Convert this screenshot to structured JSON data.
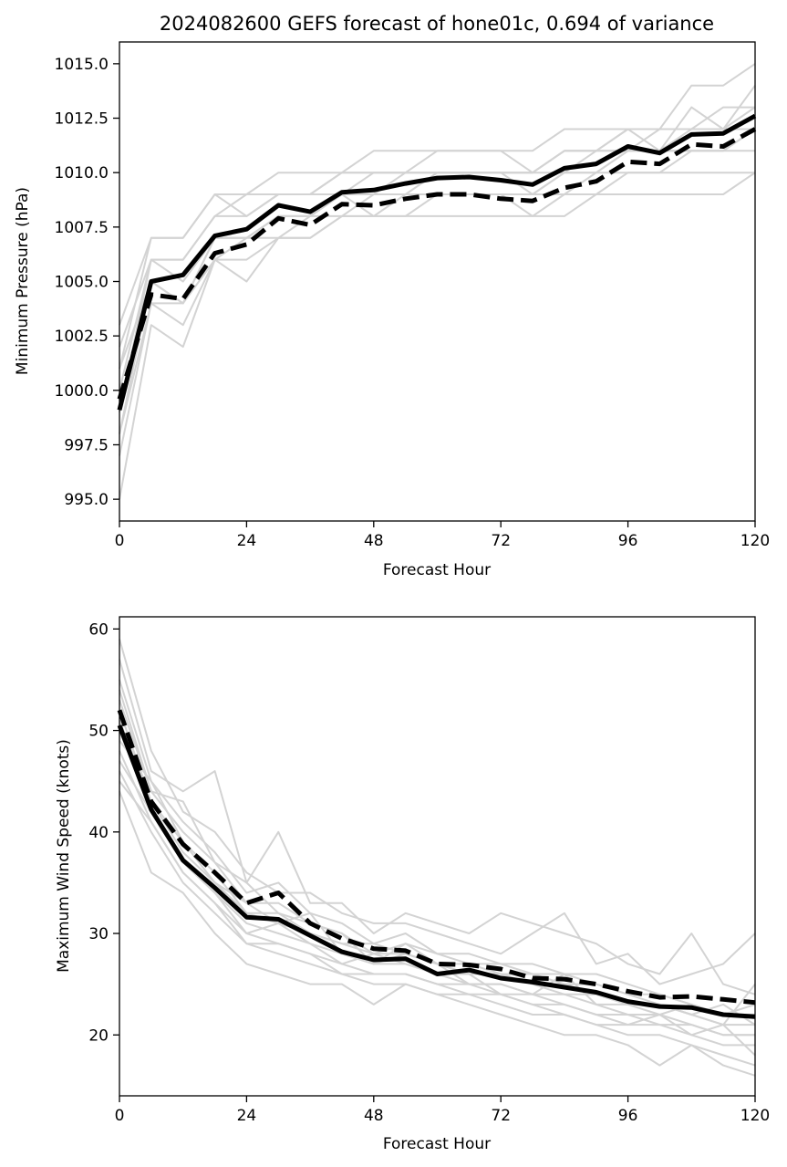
{
  "chart_data": [
    {
      "type": "line",
      "title": "2024082600 GEFS forecast of hone01c, 0.694 of variance",
      "xlabel": "Forecast Hour",
      "ylabel": "Minimum Pressure (hPa)",
      "xlim": [
        0,
        120
      ],
      "ylim": [
        994,
        1016
      ],
      "xticks": [
        0,
        24,
        48,
        72,
        96,
        120
      ],
      "xtick_labels": [
        "0",
        "24",
        "48",
        "72",
        "96",
        "120"
      ],
      "yticks": [
        995,
        997.5,
        1000,
        1002.5,
        1005,
        1007.5,
        1010,
        1012.5,
        1015
      ],
      "ytick_labels": [
        "995.0",
        "997.5",
        "1000.0",
        "1002.5",
        "1005.0",
        "1007.5",
        "1010.0",
        "1012.5",
        "1015.0"
      ],
      "grid": false,
      "x": [
        0,
        6,
        12,
        18,
        24,
        30,
        36,
        42,
        48,
        54,
        60,
        66,
        72,
        78,
        84,
        90,
        96,
        102,
        108,
        114,
        120
      ],
      "series": [
        {
          "style": "mean",
          "color": "#000000",
          "values": [
            999.1,
            1005.0,
            1005.3,
            1007.1,
            1007.4,
            1008.5,
            1008.2,
            1009.1,
            1009.2,
            1009.5,
            1009.75,
            1009.8,
            1009.65,
            1009.45,
            1010.2,
            1010.4,
            1011.2,
            1010.9,
            1011.75,
            1011.8,
            1012.6
          ]
        },
        {
          "style": "median",
          "color": "#000000",
          "values": [
            999.6,
            1004.4,
            1004.2,
            1006.3,
            1006.7,
            1007.9,
            1007.6,
            1008.55,
            1008.5,
            1008.8,
            1009.0,
            1009.0,
            1008.8,
            1008.7,
            1009.3,
            1009.6,
            1010.5,
            1010.4,
            1011.3,
            1011.2,
            1012.0
          ]
        },
        {
          "style": "member",
          "color": "#d3d3d3",
          "values": [
            995,
            1003,
            1002,
            1006,
            1005,
            1007,
            1007,
            1008,
            1008,
            1008,
            1008,
            1008,
            1008,
            1008,
            1008,
            1009,
            1009,
            1009,
            1009,
            1009,
            1010
          ]
        },
        {
          "style": "member",
          "color": "#d3d3d3",
          "values": [
            997,
            1004,
            1003,
            1006,
            1006,
            1007,
            1007,
            1008,
            1008,
            1008,
            1009,
            1009,
            1009,
            1008,
            1009,
            1009,
            1010,
            1010,
            1010,
            1010,
            1010
          ]
        },
        {
          "style": "member",
          "color": "#d3d3d3",
          "values": [
            998,
            1005,
            1004,
            1007,
            1007,
            1008,
            1008,
            1009,
            1008,
            1009,
            1009,
            1009,
            1009,
            1009,
            1009,
            1010,
            1010,
            1010,
            1011,
            1011,
            1011
          ]
        },
        {
          "style": "member",
          "color": "#d3d3d3",
          "values": [
            999,
            1006,
            1005,
            1007,
            1007,
            1008,
            1008,
            1009,
            1009,
            1009,
            1010,
            1010,
            1010,
            1009,
            1010,
            1010,
            1011,
            1011,
            1011,
            1011,
            1012
          ]
        },
        {
          "style": "member",
          "color": "#d3d3d3",
          "values": [
            1000,
            1006,
            1006,
            1008,
            1008,
            1009,
            1009,
            1009,
            1009,
            1010,
            1010,
            1010,
            1010,
            1010,
            1010,
            1011,
            1011,
            1011,
            1012,
            1012,
            1012
          ]
        },
        {
          "style": "member",
          "color": "#d3d3d3",
          "values": [
            1001,
            1007,
            1007,
            1009,
            1008,
            1009,
            1009,
            1010,
            1010,
            1010,
            1010,
            1010,
            1010,
            1010,
            1011,
            1011,
            1012,
            1012,
            1012,
            1012,
            1013
          ]
        },
        {
          "style": "member",
          "color": "#d3d3d3",
          "values": [
            1002,
            1006,
            1006,
            1008,
            1009,
            1009,
            1009,
            1010,
            1010,
            1010,
            1011,
            1011,
            1011,
            1010,
            1011,
            1011,
            1012,
            1011,
            1013,
            1012,
            1014
          ]
        },
        {
          "style": "member",
          "color": "#d3d3d3",
          "values": [
            1003,
            1007,
            1007,
            1009,
            1009,
            1010,
            1010,
            1010,
            1011,
            1011,
            1011,
            1011,
            1011,
            1011,
            1012,
            1012,
            1012,
            1012,
            1014,
            1014,
            1015
          ]
        },
        {
          "style": "member",
          "color": "#d3d3d3",
          "values": [
            1001,
            1005,
            1004,
            1007,
            1007,
            1008,
            1008,
            1009,
            1010,
            1010,
            1010,
            1010,
            1010,
            1010,
            1011,
            1011,
            1011,
            1012,
            1012,
            1013,
            1013
          ]
        },
        {
          "style": "member",
          "color": "#d3d3d3",
          "values": [
            998,
            1004,
            1004,
            1006,
            1007,
            1007,
            1008,
            1008,
            1009,
            1009,
            1009,
            1009,
            1009,
            1009,
            1010,
            1010,
            1011,
            1011,
            1011,
            1011,
            1012
          ]
        }
      ]
    },
    {
      "type": "line",
      "title": "",
      "xlabel": "Forecast Hour",
      "ylabel": "Maximum Wind Speed (knots)",
      "xlim": [
        0,
        120
      ],
      "ylim": [
        14,
        61.2
      ],
      "xticks": [
        0,
        24,
        48,
        72,
        96,
        120
      ],
      "xtick_labels": [
        "0",
        "24",
        "48",
        "72",
        "96",
        "120"
      ],
      "yticks": [
        20,
        30,
        40,
        50,
        60
      ],
      "ytick_labels": [
        "20",
        "30",
        "40",
        "50",
        "60"
      ],
      "grid": false,
      "x": [
        0,
        6,
        12,
        18,
        24,
        30,
        36,
        42,
        48,
        54,
        60,
        66,
        72,
        78,
        84,
        90,
        96,
        102,
        108,
        114,
        120
      ],
      "series": [
        {
          "style": "mean",
          "color": "#000000",
          "values": [
            50.5,
            42.2,
            37.2,
            34.5,
            31.6,
            31.4,
            29.8,
            28.2,
            27.4,
            27.5,
            26.0,
            26.4,
            25.6,
            25.2,
            24.7,
            24.2,
            23.3,
            22.8,
            22.7,
            22.0,
            21.8
          ]
        },
        {
          "style": "median",
          "color": "#000000",
          "values": [
            52.0,
            43.0,
            38.8,
            36.0,
            33.0,
            34.0,
            31.0,
            29.5,
            28.5,
            28.3,
            27.0,
            26.9,
            26.5,
            25.6,
            25.5,
            25.0,
            24.3,
            23.7,
            23.8,
            23.5,
            23.2
          ]
        },
        {
          "style": "member",
          "color": "#d3d3d3",
          "values": [
            59,
            48,
            42,
            40,
            36,
            34,
            34,
            32,
            31,
            31,
            30,
            29,
            28,
            30,
            32,
            27,
            28,
            25,
            26,
            27,
            30
          ]
        },
        {
          "style": "member",
          "color": "#d3d3d3",
          "values": [
            57,
            46,
            44,
            46,
            35,
            40,
            33,
            33,
            30,
            32,
            31,
            30,
            32,
            31,
            30,
            29,
            27,
            26,
            30,
            25,
            24
          ]
        },
        {
          "style": "member",
          "color": "#d3d3d3",
          "values": [
            55,
            45,
            41,
            38,
            34,
            35,
            32,
            31,
            29,
            30,
            28,
            28,
            27,
            27,
            26,
            26,
            25,
            24,
            23,
            22,
            23
          ]
        },
        {
          "style": "member",
          "color": "#d3d3d3",
          "values": [
            53,
            44,
            40,
            37,
            33,
            33,
            31,
            30,
            28,
            29,
            28,
            27,
            27,
            26,
            26,
            25,
            24,
            24,
            23,
            22,
            22
          ]
        },
        {
          "style": "member",
          "color": "#d3d3d3",
          "values": [
            51,
            43,
            38,
            35,
            32,
            31,
            30,
            29,
            28,
            28,
            27,
            26,
            26,
            25,
            25,
            24,
            23,
            23,
            22,
            21,
            21
          ]
        },
        {
          "style": "member",
          "color": "#d3d3d3",
          "values": [
            50,
            42,
            37,
            34,
            31,
            30,
            29,
            28,
            27,
            27,
            26,
            25,
            25,
            24,
            24,
            23,
            22,
            22,
            21,
            20,
            20
          ]
        },
        {
          "style": "member",
          "color": "#d3d3d3",
          "values": [
            48,
            41,
            36,
            33,
            30,
            29,
            28,
            27,
            26,
            26,
            25,
            24,
            24,
            23,
            23,
            22,
            21,
            21,
            20,
            19,
            19
          ]
        },
        {
          "style": "member",
          "color": "#d3d3d3",
          "values": [
            46,
            40,
            35,
            32,
            29,
            28,
            27,
            26,
            25,
            25,
            24,
            24,
            23,
            22,
            22,
            21,
            20,
            20,
            19,
            18,
            17
          ]
        },
        {
          "style": "member",
          "color": "#d3d3d3",
          "values": [
            44,
            36,
            34,
            30,
            27,
            26,
            25,
            25,
            23,
            25,
            24,
            23,
            22,
            21,
            20,
            20,
            19,
            17,
            19,
            17,
            16
          ]
        },
        {
          "style": "member",
          "color": "#d3d3d3",
          "values": [
            49,
            45,
            39,
            36,
            32,
            32,
            30,
            29,
            29,
            28,
            27,
            26,
            26,
            25,
            24,
            24,
            23,
            22,
            23,
            22,
            22
          ]
        },
        {
          "style": "member",
          "color": "#d3d3d3",
          "values": [
            54,
            44,
            43,
            37,
            35,
            32,
            31,
            30,
            27,
            29,
            27,
            27,
            26,
            26,
            25,
            25,
            24,
            23,
            22,
            21,
            25
          ]
        },
        {
          "style": "member",
          "color": "#d3d3d3",
          "values": [
            47,
            42,
            37,
            34,
            30,
            31,
            29,
            27,
            28,
            27,
            26,
            26,
            24,
            24,
            23,
            22,
            22,
            21,
            21,
            20,
            20
          ]
        },
        {
          "style": "member",
          "color": "#d3d3d3",
          "values": [
            52,
            43,
            39,
            35,
            33,
            31,
            32,
            28,
            27,
            28,
            27,
            25,
            25,
            24,
            26,
            23,
            23,
            23,
            22,
            23,
            21
          ]
        },
        {
          "style": "member",
          "color": "#d3d3d3",
          "values": [
            45,
            41,
            36,
            33,
            29,
            29,
            28,
            26,
            26,
            26,
            25,
            25,
            24,
            23,
            22,
            21,
            21,
            22,
            20,
            21,
            18
          ]
        }
      ]
    }
  ]
}
